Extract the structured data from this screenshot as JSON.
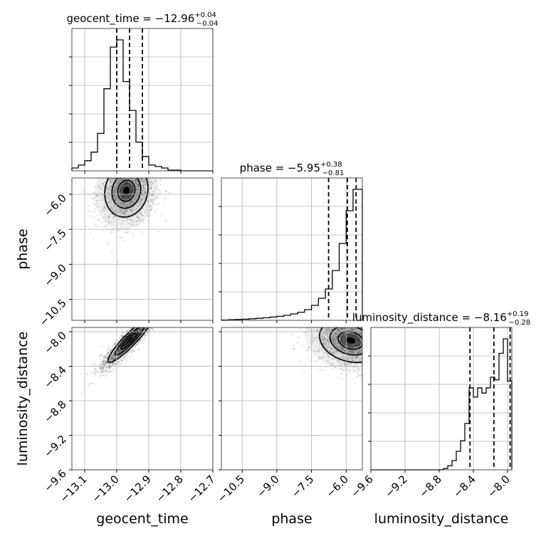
{
  "chart_data": {
    "type": "corner",
    "parameters": [
      {
        "name": "geocent_time",
        "title_name": "geocent_time",
        "median": "−12.96",
        "plus": "+0.04",
        "minus": "−0.04",
        "range": [
          -13.14,
          -12.7
        ],
        "ticks": [
          -13.1,
          -13.0,
          -12.9,
          -12.8,
          -12.7
        ],
        "tick_labels": [
          "−13.1",
          "−13.0",
          "−12.9",
          "−12.8",
          "−12.7"
        ],
        "quantiles": [
          -13.0,
          -12.96,
          -12.92
        ],
        "hist_bins": [
          -13.14,
          -13.12,
          -13.1,
          -13.08,
          -13.06,
          -13.04,
          -13.02,
          -13.0,
          -12.98,
          -12.96,
          -12.94,
          -12.92,
          -12.9,
          -12.88,
          -12.86,
          -12.84,
          -12.82,
          -12.8,
          -12.78,
          -12.76,
          -12.74,
          -12.72,
          -12.7
        ],
        "hist_counts": [
          0.02,
          0.04,
          0.07,
          0.13,
          0.26,
          0.57,
          0.86,
          0.91,
          0.62,
          0.42,
          0.2,
          0.1,
          0.04,
          0.03,
          0.02,
          0.005,
          0.005,
          0,
          0,
          0,
          0,
          0
        ]
      },
      {
        "name": "phase",
        "title_name": "phase",
        "median": "−5.95",
        "plus": "+0.38",
        "minus": "−0.81",
        "range": [
          -11.4,
          -5.3
        ],
        "ticks": [
          -10.5,
          -9.0,
          -7.5,
          -6.0
        ],
        "tick_labels": [
          "−10.5",
          "−9.0",
          "−7.5",
          "−6.0"
        ],
        "quantiles": [
          -6.76,
          -5.95,
          -5.57
        ],
        "hist_bins": [
          -11.4,
          -11.1,
          -10.8,
          -10.5,
          -10.2,
          -9.9,
          -9.6,
          -9.3,
          -9.0,
          -8.7,
          -8.4,
          -8.1,
          -7.8,
          -7.5,
          -7.2,
          -6.9,
          -6.6,
          -6.3,
          -6.0,
          -5.7,
          -5.4,
          -5.3
        ],
        "hist_counts": [
          0.002,
          0.004,
          0.006,
          0.008,
          0.011,
          0.014,
          0.018,
          0.023,
          0.028,
          0.035,
          0.045,
          0.057,
          0.075,
          0.105,
          0.155,
          0.22,
          0.35,
          0.54,
          0.77,
          0.92,
          0.92
        ]
      },
      {
        "name": "luminosity_distance",
        "title_name": "luminosity_distance",
        "median": "−8.16",
        "plus": "+0.19",
        "minus": "−0.28",
        "range": [
          -9.6,
          -7.95
        ],
        "ticks": [
          -9.6,
          -9.2,
          -8.8,
          -8.4,
          -8.0
        ],
        "tick_labels": [
          "−9.6",
          "−9.2",
          "−8.8",
          "−8.4",
          "−8.0"
        ],
        "quantiles": [
          -8.44,
          -8.16,
          -7.97
        ],
        "hist_bins": [
          -9.6,
          -9.55,
          -9.5,
          -9.45,
          -9.4,
          -9.35,
          -9.3,
          -9.25,
          -9.2,
          -9.15,
          -9.1,
          -9.05,
          -9.0,
          -8.95,
          -8.9,
          -8.85,
          -8.8,
          -8.75,
          -8.7,
          -8.65,
          -8.6,
          -8.55,
          -8.5,
          -8.45,
          -8.4,
          -8.35,
          -8.3,
          -8.25,
          -8.2,
          -8.15,
          -8.1,
          -8.05,
          -8.0,
          -7.95
        ],
        "hist_counts": [
          0,
          0,
          0,
          0,
          0,
          0,
          0,
          0,
          0,
          0,
          0,
          0,
          0,
          0,
          0,
          0,
          0.001,
          0.01,
          0.03,
          0.07,
          0.14,
          0.22,
          0.35,
          0.62,
          0.55,
          0.62,
          0.58,
          0.62,
          0.7,
          0.68,
          0.88,
          0.99,
          0.67
        ]
      }
    ],
    "pairs": [
      {
        "x": "geocent_time",
        "y": "phase",
        "center": [
          -12.97,
          -5.85
        ],
        "spread": [
          0.045,
          0.75
        ],
        "rho": 0.1
      },
      {
        "x": "geocent_time",
        "y": "luminosity_distance",
        "center": [
          -12.96,
          -8.1
        ],
        "spread": [
          0.045,
          0.17
        ],
        "rho": 0.92
      },
      {
        "x": "phase",
        "y": "luminosity_distance",
        "center": [
          -5.8,
          -8.1
        ],
        "spread": [
          0.9,
          0.17
        ],
        "rho": -0.2
      }
    ],
    "grid": true
  }
}
